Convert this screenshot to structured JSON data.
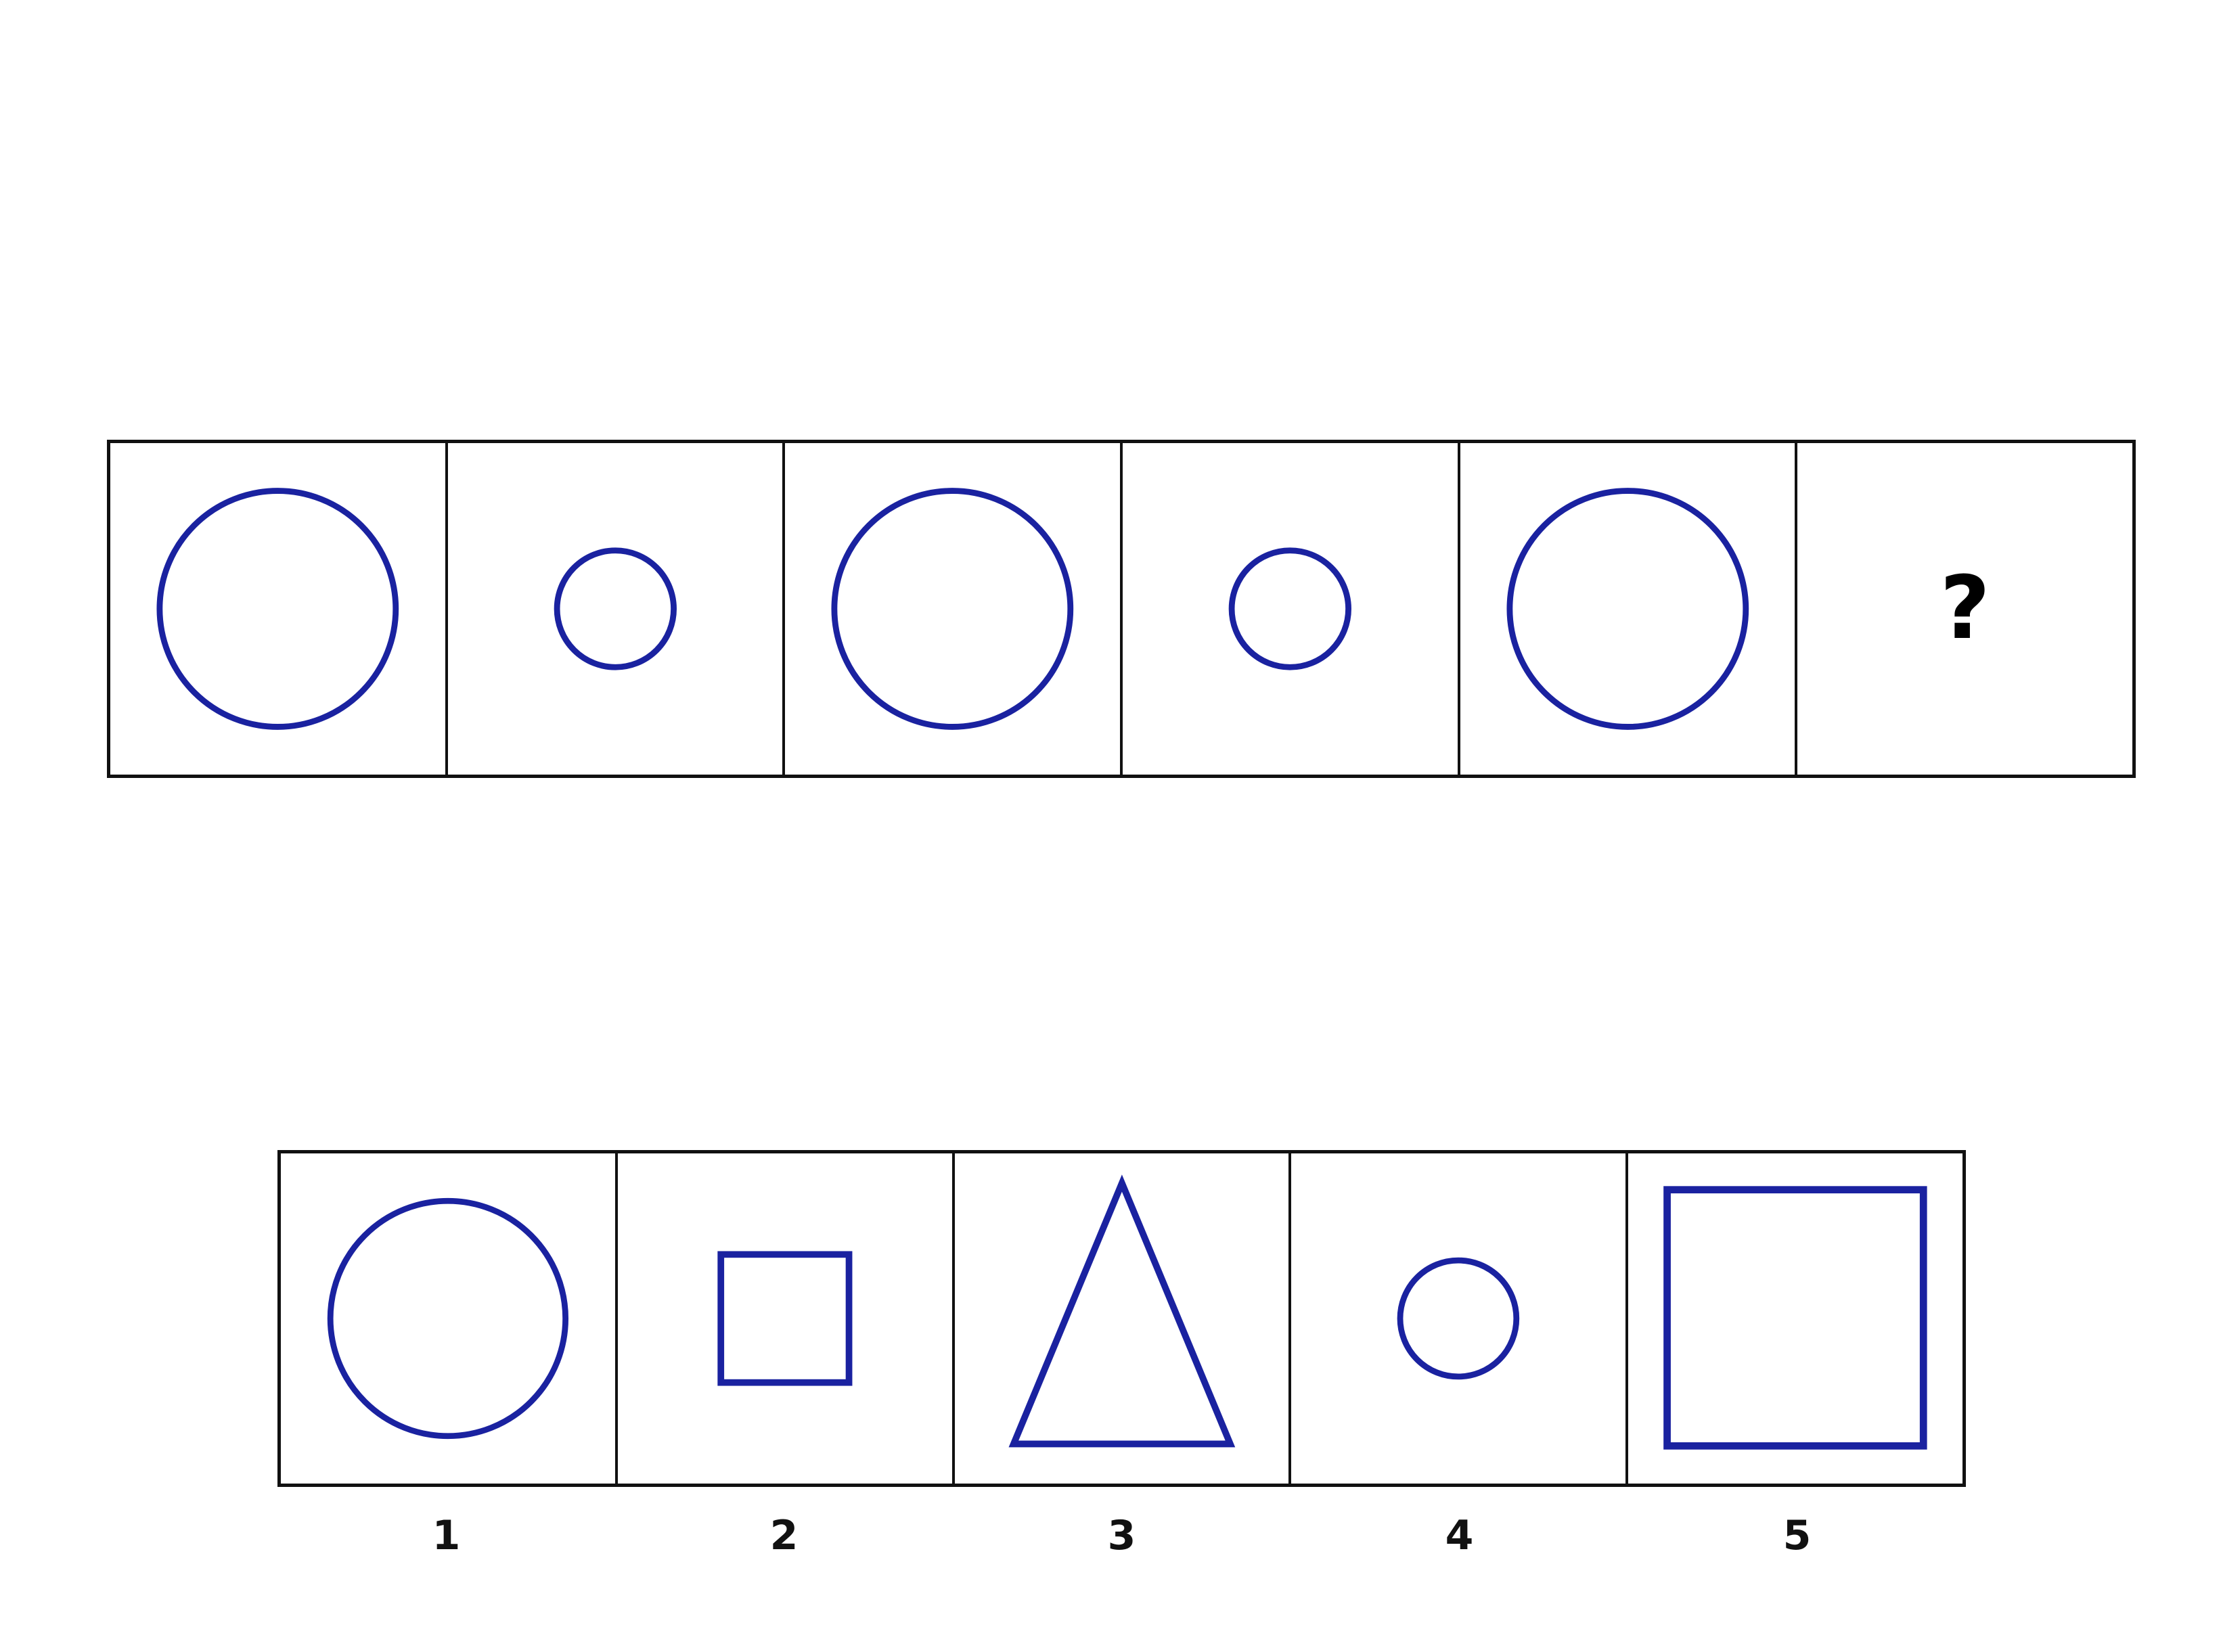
{
  "colors": {
    "shape_stroke": "#1a22a0",
    "border": "#111111",
    "background": "#ffffff"
  },
  "sequence": [
    {
      "shape": "circle",
      "size": "large"
    },
    {
      "shape": "circle",
      "size": "small"
    },
    {
      "shape": "circle",
      "size": "large"
    },
    {
      "shape": "circle",
      "size": "small"
    },
    {
      "shape": "circle",
      "size": "large"
    },
    {
      "shape": "unknown",
      "text": "?"
    }
  ],
  "options": [
    {
      "label": "1",
      "shape": "circle",
      "size": "large"
    },
    {
      "label": "2",
      "shape": "square",
      "size": "small"
    },
    {
      "label": "3",
      "shape": "triangle",
      "size": "large"
    },
    {
      "label": "4",
      "shape": "circle",
      "size": "small"
    },
    {
      "label": "5",
      "shape": "square",
      "size": "large"
    }
  ]
}
